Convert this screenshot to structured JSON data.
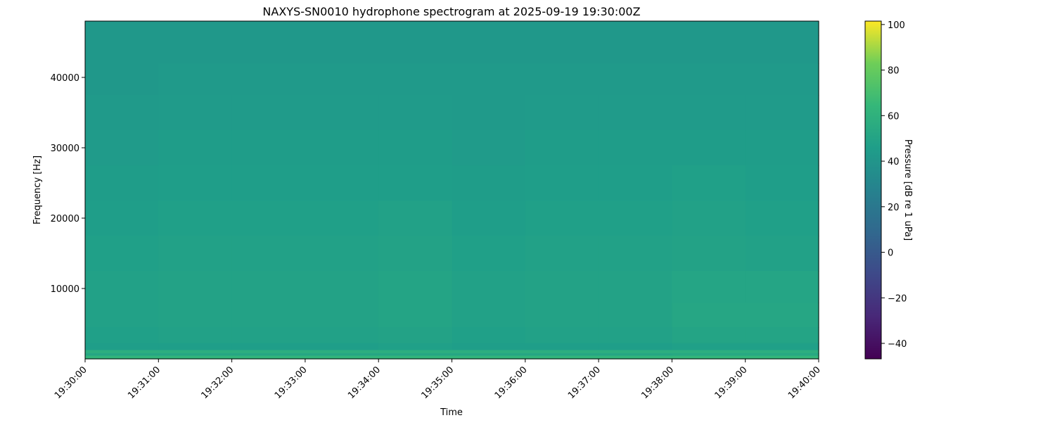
{
  "chart_data": {
    "type": "heatmap",
    "title": "NAXYS-SN0010 hydrophone spectrogram at 2025-09-19 19:30:00Z",
    "xlabel": "Time",
    "ylabel": "Frequency [Hz]",
    "colorbar_label": "Pressure [dB re 1 uPa]",
    "colormap": "viridis",
    "x_ticks": [
      "19:30:00",
      "19:31:00",
      "19:32:00",
      "19:33:00",
      "19:34:00",
      "19:35:00",
      "19:36:00",
      "19:37:00",
      "19:38:00",
      "19:39:00",
      "19:40:00"
    ],
    "y_ticks": [
      10000,
      20000,
      30000,
      40000
    ],
    "ylim": [
      0,
      48000
    ],
    "colorbar_ticks": [
      -40,
      -20,
      0,
      20,
      40,
      60,
      80,
      100
    ],
    "clim": [
      -46.8,
      101.5
    ],
    "grid": false,
    "time_bins": [
      "19:30",
      "19:31",
      "19:32",
      "19:33",
      "19:34",
      "19:35",
      "19:36",
      "19:37",
      "19:38",
      "19:39"
    ],
    "frequency_bins_hz": [
      48000,
      44000,
      40000,
      35000,
      30000,
      25000,
      20000,
      15000,
      10000,
      6000,
      3000,
      1500,
      1000,
      600,
      300
    ],
    "values_db": [
      [
        42,
        42,
        42,
        42,
        42,
        42,
        42,
        42,
        42,
        42
      ],
      [
        42,
        42,
        42,
        42,
        42,
        42,
        42,
        42,
        42,
        42
      ],
      [
        42,
        43,
        43,
        43,
        43,
        43,
        43,
        43,
        43,
        43
      ],
      [
        43,
        44,
        44,
        44,
        44,
        43,
        44,
        44,
        44,
        44
      ],
      [
        44,
        45,
        45,
        45,
        45,
        44,
        45,
        45,
        45,
        45
      ],
      [
        45,
        46,
        46,
        46,
        46,
        45,
        46,
        46,
        47,
        46
      ],
      [
        46,
        47,
        47,
        47,
        48,
        46,
        47,
        47,
        48,
        47
      ],
      [
        47,
        48,
        48,
        48,
        49,
        47,
        48,
        48,
        49,
        48
      ],
      [
        48,
        49,
        49,
        49,
        50,
        48,
        49,
        49,
        51,
        51
      ],
      [
        48,
        49,
        49,
        49,
        50,
        48,
        49,
        49,
        52,
        52
      ],
      [
        47,
        48,
        48,
        48,
        49,
        47,
        48,
        48,
        50,
        50
      ],
      [
        46,
        46,
        46,
        46,
        47,
        46,
        46,
        46,
        47,
        47
      ],
      [
        58,
        58,
        58,
        58,
        58,
        58,
        58,
        58,
        58,
        58
      ],
      [
        52,
        52,
        52,
        52,
        52,
        52,
        52,
        52,
        53,
        53
      ],
      [
        62,
        62,
        62,
        62,
        62,
        62,
        62,
        62,
        63,
        63
      ]
    ]
  }
}
